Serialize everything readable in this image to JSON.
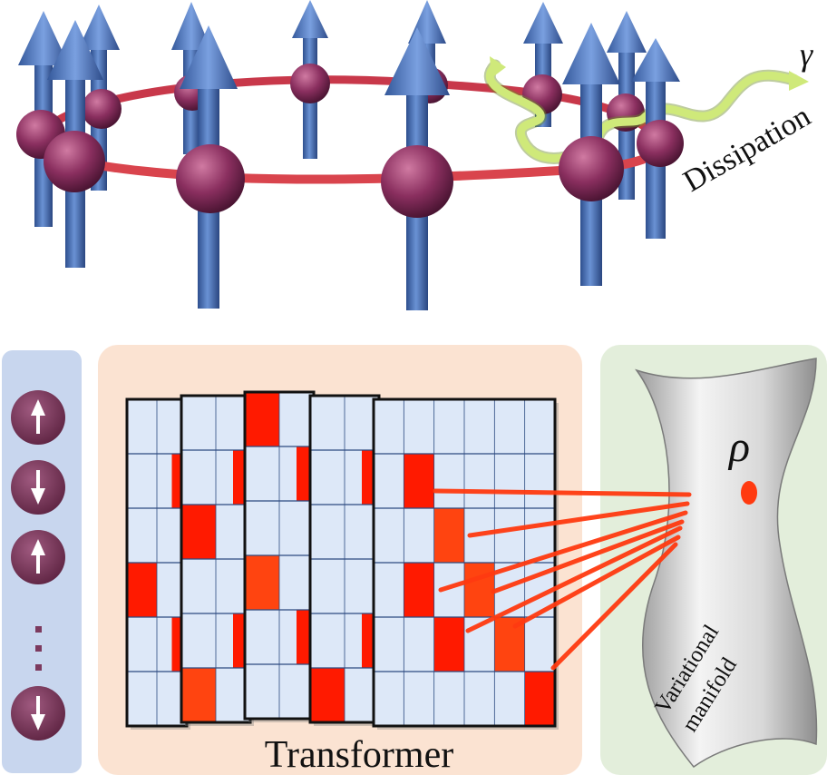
{
  "labels": {
    "gamma": "γ",
    "dissipation": "Dissipation",
    "rho": "ρ",
    "transformer": "Transformer",
    "variational": "Variational",
    "manifold": "manifold",
    "ellipsis": "⋮"
  },
  "spin_column": [
    "up",
    "down",
    "up",
    "ellipsis",
    "down"
  ],
  "colors": {
    "spin_arrow": "#4a72b5",
    "site_sphere": "#8a2f5f",
    "ring": "#d9444d",
    "dissipation_wave": "#c8e86a",
    "grid_cell": "#dde8f8",
    "grid_line": "#2c4a80",
    "grid_highlight": "#ff2200",
    "attention_line": "#ff3a10",
    "panel_left": "#c8d6ee",
    "panel_mid": "#fbe3d2",
    "panel_right": "#e3eedb",
    "spin_disc": "#7c3a5e"
  }
}
